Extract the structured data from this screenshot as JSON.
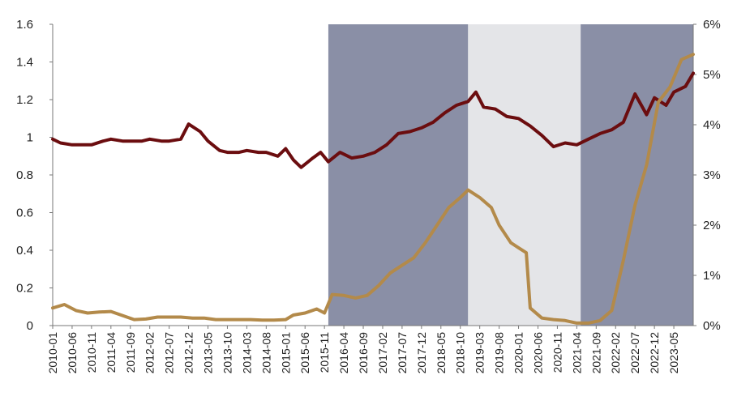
{
  "chart_data": {
    "type": "line",
    "title": "",
    "xlabel": "",
    "ylabel": "",
    "y2label": "",
    "legend": "none",
    "grid": false,
    "x_tick_labels": [
      "2010-01",
      "2010-06",
      "2010-11",
      "2011-04",
      "2011-09",
      "2012-02",
      "2012-07",
      "2012-12",
      "2013-05",
      "2013-10",
      "2014-03",
      "2014-08",
      "2015-01",
      "2015-06",
      "2015-11",
      "2016-04",
      "2016-09",
      "2017-02",
      "2017-07",
      "2017-12",
      "2018-05",
      "2018-10",
      "2019-03",
      "2019-08",
      "2020-01",
      "2020-06",
      "2020-11",
      "2021-04",
      "2021-09",
      "2022-02",
      "2022-07",
      "2022-12",
      "2023-05"
    ],
    "x_range": [
      "2010-01",
      "2023-10"
    ],
    "y_left": {
      "min": 0,
      "max": 1.6,
      "ticks": [
        "0",
        "0.2",
        "0.4",
        "0.6",
        "0.8",
        "1",
        "1.2",
        "1.4",
        "1.6"
      ]
    },
    "y_right": {
      "min": 0,
      "max": 6,
      "unit": "%",
      "ticks": [
        "0%",
        "1%",
        "2%",
        "3%",
        "4%",
        "5%",
        "6%"
      ]
    },
    "shaded_periods": [
      {
        "start": "2015-12",
        "end": "2018-12",
        "color": "#8a8fa6"
      },
      {
        "start": "2018-12",
        "end": "2021-05",
        "color": "#e4e5e8"
      },
      {
        "start": "2021-05",
        "end": "2023-10",
        "color": "#8a8fa6"
      }
    ],
    "series": [
      {
        "axis": "left",
        "color": "#6b0d0f",
        "points": [
          [
            "2010-01",
            0.99
          ],
          [
            "2010-03",
            0.97
          ],
          [
            "2010-06",
            0.96
          ],
          [
            "2010-09",
            0.96
          ],
          [
            "2010-11",
            0.96
          ],
          [
            "2011-02",
            0.98
          ],
          [
            "2011-04",
            0.99
          ],
          [
            "2011-07",
            0.98
          ],
          [
            "2011-09",
            0.98
          ],
          [
            "2011-12",
            0.98
          ],
          [
            "2012-02",
            0.99
          ],
          [
            "2012-05",
            0.98
          ],
          [
            "2012-07",
            0.98
          ],
          [
            "2012-10",
            0.99
          ],
          [
            "2012-12",
            1.07
          ],
          [
            "2013-03",
            1.03
          ],
          [
            "2013-05",
            0.98
          ],
          [
            "2013-08",
            0.93
          ],
          [
            "2013-10",
            0.92
          ],
          [
            "2014-01",
            0.92
          ],
          [
            "2014-03",
            0.93
          ],
          [
            "2014-06",
            0.92
          ],
          [
            "2014-08",
            0.92
          ],
          [
            "2014-11",
            0.9
          ],
          [
            "2015-01",
            0.94
          ],
          [
            "2015-03",
            0.88
          ],
          [
            "2015-05",
            0.84
          ],
          [
            "2015-08",
            0.89
          ],
          [
            "2015-10",
            0.92
          ],
          [
            "2015-12",
            0.87
          ],
          [
            "2016-03",
            0.92
          ],
          [
            "2016-06",
            0.89
          ],
          [
            "2016-09",
            0.9
          ],
          [
            "2016-12",
            0.92
          ],
          [
            "2017-03",
            0.96
          ],
          [
            "2017-06",
            1.02
          ],
          [
            "2017-09",
            1.03
          ],
          [
            "2017-12",
            1.05
          ],
          [
            "2018-03",
            1.08
          ],
          [
            "2018-06",
            1.13
          ],
          [
            "2018-09",
            1.17
          ],
          [
            "2018-12",
            1.19
          ],
          [
            "2019-02",
            1.24
          ],
          [
            "2019-04",
            1.16
          ],
          [
            "2019-07",
            1.15
          ],
          [
            "2019-10",
            1.11
          ],
          [
            "2020-01",
            1.1
          ],
          [
            "2020-04",
            1.06
          ],
          [
            "2020-07",
            1.01
          ],
          [
            "2020-10",
            0.95
          ],
          [
            "2021-01",
            0.97
          ],
          [
            "2021-04",
            0.96
          ],
          [
            "2021-07",
            0.99
          ],
          [
            "2021-10",
            1.02
          ],
          [
            "2022-01",
            1.04
          ],
          [
            "2022-04",
            1.08
          ],
          [
            "2022-07",
            1.23
          ],
          [
            "2022-10",
            1.12
          ],
          [
            "2022-12",
            1.21
          ],
          [
            "2023-03",
            1.17
          ],
          [
            "2023-05",
            1.24
          ],
          [
            "2023-08",
            1.27
          ],
          [
            "2023-10",
            1.34
          ]
        ]
      },
      {
        "axis": "right",
        "color": "#b38a4a",
        "points": [
          [
            "2010-01",
            0.35
          ],
          [
            "2010-04",
            0.42
          ],
          [
            "2010-07",
            0.3
          ],
          [
            "2010-10",
            0.25
          ],
          [
            "2011-01",
            0.27
          ],
          [
            "2011-04",
            0.28
          ],
          [
            "2011-07",
            0.2
          ],
          [
            "2011-10",
            0.12
          ],
          [
            "2012-01",
            0.13
          ],
          [
            "2012-04",
            0.17
          ],
          [
            "2012-07",
            0.17
          ],
          [
            "2012-10",
            0.17
          ],
          [
            "2013-01",
            0.15
          ],
          [
            "2013-04",
            0.15
          ],
          [
            "2013-07",
            0.12
          ],
          [
            "2013-10",
            0.12
          ],
          [
            "2014-01",
            0.12
          ],
          [
            "2014-04",
            0.12
          ],
          [
            "2014-07",
            0.11
          ],
          [
            "2014-10",
            0.11
          ],
          [
            "2015-01",
            0.12
          ],
          [
            "2015-03",
            0.21
          ],
          [
            "2015-06",
            0.25
          ],
          [
            "2015-09",
            0.33
          ],
          [
            "2015-11",
            0.25
          ],
          [
            "2016-01",
            0.62
          ],
          [
            "2016-04",
            0.6
          ],
          [
            "2016-07",
            0.55
          ],
          [
            "2016-10",
            0.6
          ],
          [
            "2017-01",
            0.8
          ],
          [
            "2017-04",
            1.05
          ],
          [
            "2017-07",
            1.2
          ],
          [
            "2017-10",
            1.35
          ],
          [
            "2018-01",
            1.65
          ],
          [
            "2018-04",
            2.0
          ],
          [
            "2018-07",
            2.35
          ],
          [
            "2018-10",
            2.55
          ],
          [
            "2018-12",
            2.7
          ],
          [
            "2019-03",
            2.55
          ],
          [
            "2019-06",
            2.35
          ],
          [
            "2019-08",
            2.0
          ],
          [
            "2019-11",
            1.65
          ],
          [
            "2020-01",
            1.55
          ],
          [
            "2020-03",
            1.45
          ],
          [
            "2020-04",
            0.35
          ],
          [
            "2020-07",
            0.15
          ],
          [
            "2020-10",
            0.12
          ],
          [
            "2021-01",
            0.1
          ],
          [
            "2021-04",
            0.05
          ],
          [
            "2021-07",
            0.05
          ],
          [
            "2021-10",
            0.1
          ],
          [
            "2022-01",
            0.3
          ],
          [
            "2022-04",
            1.3
          ],
          [
            "2022-07",
            2.4
          ],
          [
            "2022-10",
            3.2
          ],
          [
            "2023-01",
            4.45
          ],
          [
            "2023-04",
            4.75
          ],
          [
            "2023-07",
            5.3
          ],
          [
            "2023-10",
            5.4
          ]
        ]
      }
    ]
  }
}
